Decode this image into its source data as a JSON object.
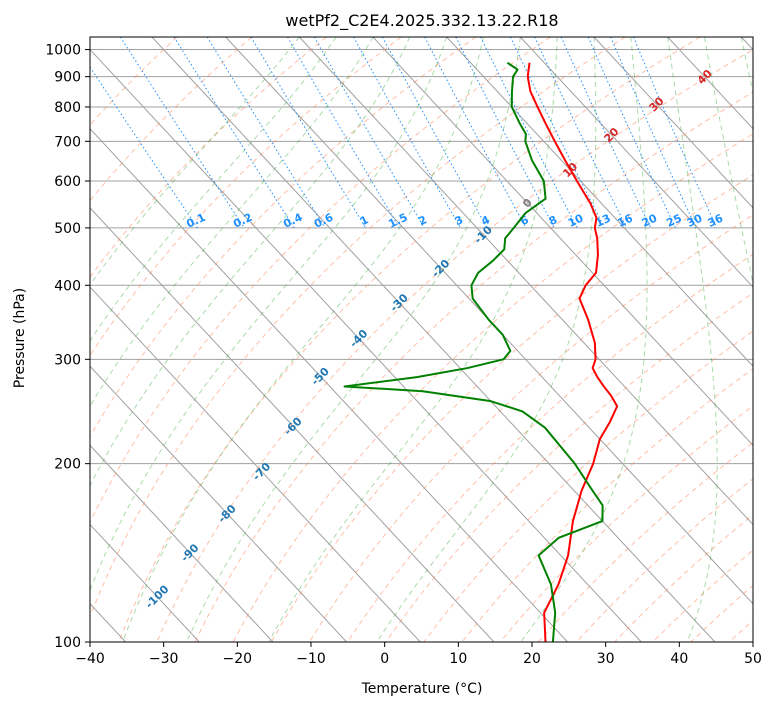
{
  "chart_data": {
    "type": "skew-t",
    "title": "wetPf2_C2E4.2025.332.13.22.R18",
    "xlabel": "Temperature (°C)",
    "ylabel": "Pressure (hPa)",
    "xlim": [
      -40,
      50
    ],
    "ylim": [
      1050,
      100
    ],
    "x_ticks": [
      "−40",
      "−30",
      "−20",
      "−10",
      "0",
      "10",
      "20",
      "30",
      "40",
      "50"
    ],
    "x_tick_values": [
      -40,
      -30,
      -20,
      -10,
      0,
      10,
      20,
      30,
      40,
      50
    ],
    "y_ticks": [
      "100",
      "200",
      "300",
      "400",
      "500",
      "600",
      "700",
      "800",
      "900",
      "1000"
    ],
    "y_tick_values": [
      100,
      200,
      300,
      400,
      500,
      600,
      700,
      800,
      900,
      1000
    ],
    "skew_deg_per_log": 32.5,
    "colors": {
      "temperature": "#ff0000",
      "dewpoint": "#008000",
      "isotherm": "#a0a0a0",
      "dry_adiabat": "#ff7f50",
      "moist_adiabat": "#2ca02c",
      "mixing_ratio": "#1e90ff"
    },
    "series": [
      {
        "name": "Temperature",
        "points": [
          [
            18.0,
            950
          ],
          [
            17.0,
            925
          ],
          [
            16.0,
            900
          ],
          [
            14.5,
            850
          ],
          [
            13.5,
            800
          ],
          [
            12.5,
            750
          ],
          [
            11.5,
            700
          ],
          [
            10.5,
            650
          ],
          [
            9.5,
            600
          ],
          [
            8.5,
            550
          ],
          [
            7.5,
            520
          ],
          [
            6.0,
            500
          ],
          [
            5.0,
            480
          ],
          [
            3.0,
            450
          ],
          [
            0.5,
            420
          ],
          [
            -2.5,
            400
          ],
          [
            -5.0,
            380
          ],
          [
            -6.5,
            350
          ],
          [
            -8.5,
            320
          ],
          [
            -10.5,
            300
          ],
          [
            -12.0,
            290
          ],
          [
            -12.5,
            280
          ],
          [
            -12.8,
            270
          ],
          [
            -13.0,
            260
          ],
          [
            -13.5,
            250
          ],
          [
            -16.5,
            235
          ],
          [
            -20.0,
            220
          ],
          [
            -24.0,
            200
          ],
          [
            -29.0,
            180
          ],
          [
            -34.0,
            160
          ],
          [
            -39.0,
            140
          ],
          [
            -44.0,
            125
          ],
          [
            -49.5,
            112
          ],
          [
            -53.0,
            100
          ]
        ]
      },
      {
        "name": "Dewpoint",
        "points": [
          [
            15.0,
            950
          ],
          [
            15.5,
            925
          ],
          [
            14.0,
            900
          ],
          [
            12.0,
            850
          ],
          [
            10.0,
            800
          ],
          [
            9.0,
            750
          ],
          [
            8.5,
            720
          ],
          [
            7.5,
            700
          ],
          [
            6.0,
            650
          ],
          [
            5.0,
            600
          ],
          [
            3.0,
            560
          ],
          [
            -1.5,
            530
          ],
          [
            -5.0,
            500
          ],
          [
            -7.5,
            480
          ],
          [
            -9.0,
            460
          ],
          [
            -12.0,
            440
          ],
          [
            -15.5,
            420
          ],
          [
            -18.0,
            400
          ],
          [
            -19.5,
            380
          ],
          [
            -20.0,
            350
          ],
          [
            -20.0,
            330
          ],
          [
            -21.0,
            310
          ],
          [
            -23.0,
            300
          ],
          [
            -29.0,
            290
          ],
          [
            -37.0,
            280
          ],
          [
            -48.0,
            270
          ],
          [
            -38.0,
            265
          ],
          [
            -30.0,
            255
          ],
          [
            -27.0,
            245
          ],
          [
            -26.0,
            230
          ],
          [
            -26.5,
            200
          ],
          [
            -27.5,
            180
          ],
          [
            -28.0,
            170
          ],
          [
            -30.0,
            160
          ],
          [
            -38.0,
            150
          ],
          [
            -43.0,
            140
          ],
          [
            -45.0,
            125
          ],
          [
            -48.0,
            112
          ],
          [
            -52.0,
            100
          ]
        ]
      }
    ],
    "dry_adiabat_labels": [
      "-100",
      "-90",
      "-80",
      "-70",
      "-60",
      "-50",
      "-40",
      "-30",
      "-20",
      "-10"
    ],
    "dry_adiabat_label_values": [
      -100,
      -90,
      -80,
      -70,
      -60,
      -50,
      -40,
      -30,
      -20,
      -10
    ],
    "mixing_ratio_labels": [
      "0.1",
      "0.2",
      "0.4",
      "0.6",
      "1",
      "1.5",
      "2",
      "3",
      "4",
      "6",
      "8",
      "10",
      "13",
      "16",
      "20",
      "25",
      "30",
      "36"
    ],
    "mixing_ratio_values": [
      0.1,
      0.2,
      0.4,
      0.6,
      1,
      1.5,
      2,
      3,
      4,
      6,
      8,
      10,
      13,
      16,
      20,
      25,
      30,
      36
    ],
    "moist_adiabat_labels": [
      "0",
      "10",
      "20",
      "30",
      "40"
    ],
    "moist_adiabat_values": [
      0,
      10,
      20,
      30,
      40
    ]
  }
}
